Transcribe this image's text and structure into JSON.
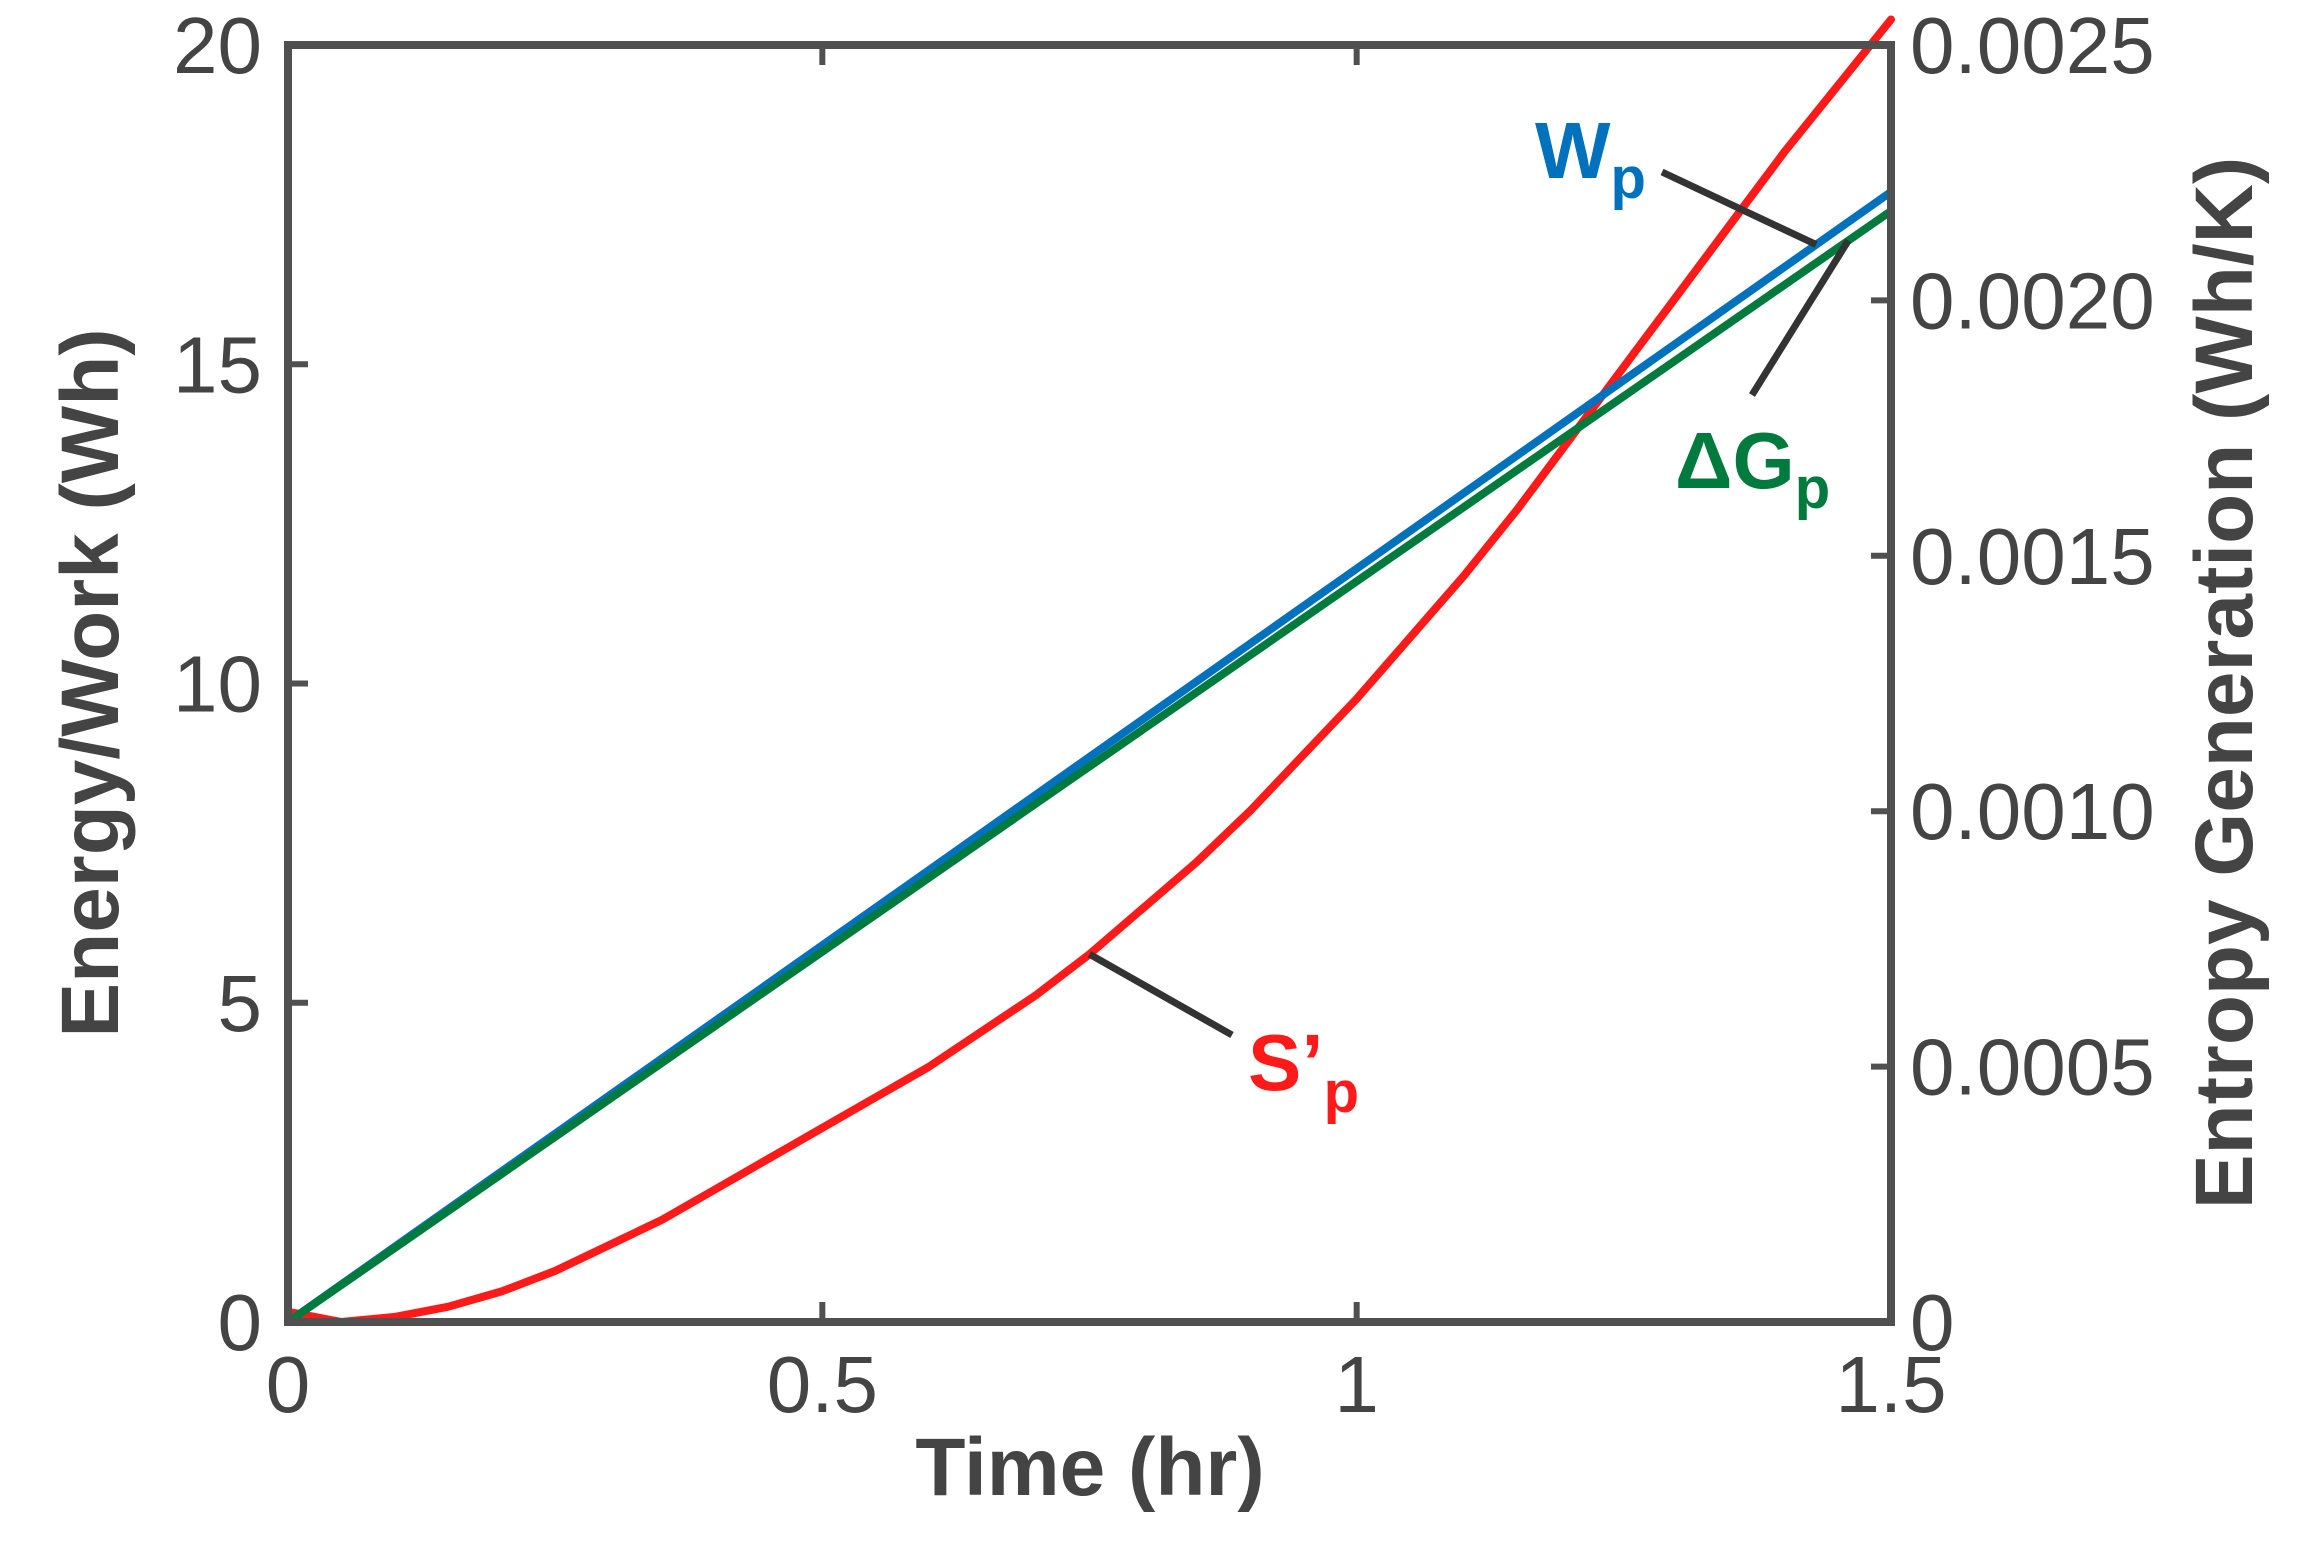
{
  "chart_data": {
    "type": "line",
    "title": "",
    "xlabel": "Time (hr)",
    "ylabel": "Energy/Work (Wh)",
    "y2label": "Entropy Generation (Wh/K)",
    "xlim": [
      0,
      1.5
    ],
    "ylim": [
      0,
      20
    ],
    "y2lim": [
      0,
      0.0025
    ],
    "grid": false,
    "x_ticks": [
      "0",
      "0.5",
      "1",
      "1.5"
    ],
    "x_tick_values": [
      0,
      0.5,
      1,
      1.5
    ],
    "y_ticks": [
      "0",
      "5",
      "10",
      "15",
      "20"
    ],
    "y_tick_values": [
      0,
      5,
      10,
      15,
      20
    ],
    "y2_ticks": [
      "0",
      "0.0005",
      "0.0010",
      "0.0015",
      "0.0020",
      "0.0025"
    ],
    "y2_tick_values": [
      0,
      0.0005,
      0.001,
      0.0015,
      0.002,
      0.0025
    ],
    "series": [
      {
        "name": "Wp",
        "label_main": "W",
        "label_sub": "p",
        "axis": "left",
        "color": "#0072bd",
        "x": [
          0,
          0.25,
          0.5,
          0.75,
          1.0,
          1.25,
          1.5
        ],
        "values": [
          0,
          2.95,
          5.9,
          8.85,
          11.8,
          14.75,
          17.7
        ]
      },
      {
        "name": "ΔGp",
        "label_main": "ΔG",
        "label_sub": "p",
        "axis": "left",
        "color": "#007a3d",
        "x": [
          0,
          0.25,
          0.5,
          0.75,
          1.0,
          1.25,
          1.5
        ],
        "values": [
          0,
          2.9,
          5.8,
          8.7,
          11.6,
          14.5,
          17.4
        ]
      },
      {
        "name": "S'p",
        "label_main": "S’",
        "label_sub": "p",
        "axis": "right",
        "color": "#ff1a1a",
        "x": [
          0,
          0.05,
          0.1,
          0.15,
          0.2,
          0.25,
          0.3,
          0.35,
          0.4,
          0.45,
          0.5,
          0.55,
          0.6,
          0.65,
          0.7,
          0.75,
          0.8,
          0.85,
          0.9,
          0.95,
          1.0,
          1.05,
          1.1,
          1.15,
          1.2,
          1.25,
          1.3,
          1.35,
          1.4,
          1.45,
          1.5
        ],
        "values": [
          2e-05,
          0.0,
          1e-05,
          3e-05,
          6e-05,
          0.0001,
          0.00015,
          0.0002,
          0.00026,
          0.00032,
          0.00038,
          0.00044,
          0.0005,
          0.00057,
          0.00064,
          0.00072,
          0.00081,
          0.0009,
          0.001,
          0.00111,
          0.00122,
          0.00134,
          0.00146,
          0.00159,
          0.00173,
          0.00187,
          0.00201,
          0.00215,
          0.00229,
          0.00242,
          0.00255
        ]
      }
    ],
    "annotations": [
      {
        "series": "Wp",
        "text": "Wp"
      },
      {
        "series": "ΔGp",
        "text": "ΔGp"
      },
      {
        "series": "S'p",
        "text": "S'p"
      }
    ]
  }
}
